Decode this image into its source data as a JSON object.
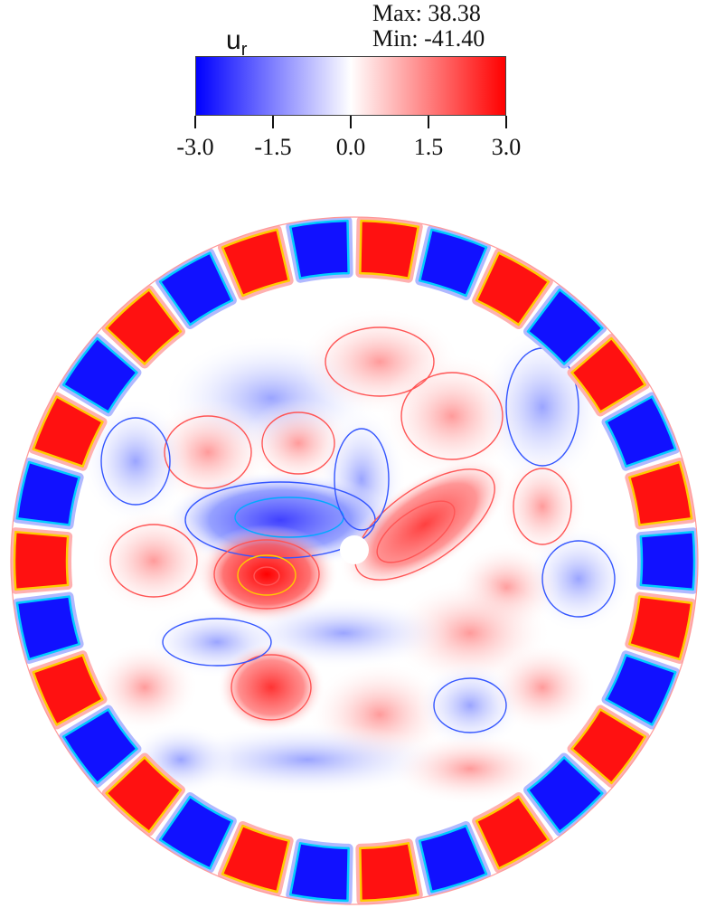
{
  "legend": {
    "variable": "u",
    "subscript": "r",
    "max_text": "Max: 38.38",
    "min_text": "Min: -41.40",
    "ticks": [
      "-3.0",
      "-1.5",
      "0.0",
      "1.5",
      "3.0"
    ],
    "range": [
      -3.0,
      3.0
    ],
    "colormap": [
      "#0000ff",
      "#ffffff",
      "#ff0000"
    ]
  },
  "field": {
    "quantity": "radial velocity contour",
    "positive_color": "#ff1111",
    "negative_color": "#1111ff",
    "contour_colors": [
      "#3355ff",
      "#00aaff",
      "#ff5555",
      "#ffcc00"
    ]
  }
}
